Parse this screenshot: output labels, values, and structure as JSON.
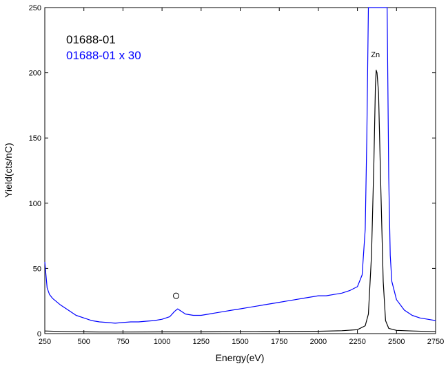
{
  "chart_data": {
    "type": "line",
    "xlabel": "Energy(eV)",
    "ylabel": "Yield(cts/nC)",
    "xlim": [
      250,
      2750
    ],
    "ylim": [
      0,
      250
    ],
    "x_ticks": [
      "250",
      "500",
      "750",
      "1000",
      "1250",
      "1500",
      "1750",
      "2000",
      "2250",
      "2500",
      "2750"
    ],
    "y_ticks": [
      "0",
      "50",
      "100",
      "150",
      "200",
      "250"
    ],
    "grid": false,
    "legend_position": "top-left",
    "series": [
      {
        "name": "01688-01",
        "color": "#000000",
        "points": [
          [
            250,
            2
          ],
          [
            400,
            1.5
          ],
          [
            600,
            1.2
          ],
          [
            800,
            1.2
          ],
          [
            1000,
            1.3
          ],
          [
            1200,
            1.3
          ],
          [
            1400,
            1.4
          ],
          [
            1600,
            1.5
          ],
          [
            1800,
            1.6
          ],
          [
            2000,
            1.8
          ],
          [
            2150,
            2.2
          ],
          [
            2250,
            3
          ],
          [
            2300,
            6
          ],
          [
            2320,
            15
          ],
          [
            2340,
            60
          ],
          [
            2355,
            130
          ],
          [
            2365,
            190
          ],
          [
            2370,
            202
          ],
          [
            2375,
            200
          ],
          [
            2385,
            185
          ],
          [
            2400,
            110
          ],
          [
            2415,
            40
          ],
          [
            2430,
            10
          ],
          [
            2450,
            4
          ],
          [
            2500,
            2.5
          ],
          [
            2600,
            2
          ],
          [
            2750,
            1.5
          ]
        ]
      },
      {
        "name": "01688-01 x 30",
        "color": "#0000ff",
        "points": [
          [
            250,
            55
          ],
          [
            265,
            35
          ],
          [
            280,
            30
          ],
          [
            300,
            27
          ],
          [
            350,
            22
          ],
          [
            400,
            18
          ],
          [
            450,
            14
          ],
          [
            500,
            12
          ],
          [
            550,
            10
          ],
          [
            600,
            9
          ],
          [
            650,
            8.5
          ],
          [
            700,
            8
          ],
          [
            750,
            8.5
          ],
          [
            800,
            9
          ],
          [
            850,
            9
          ],
          [
            900,
            9.5
          ],
          [
            950,
            10
          ],
          [
            1000,
            11
          ],
          [
            1050,
            13
          ],
          [
            1080,
            17
          ],
          [
            1100,
            19
          ],
          [
            1150,
            15
          ],
          [
            1200,
            14
          ],
          [
            1250,
            14
          ],
          [
            1300,
            15
          ],
          [
            1350,
            16
          ],
          [
            1400,
            17
          ],
          [
            1450,
            18
          ],
          [
            1500,
            19
          ],
          [
            1550,
            20
          ],
          [
            1600,
            21
          ],
          [
            1650,
            22
          ],
          [
            1700,
            23
          ],
          [
            1750,
            24
          ],
          [
            1800,
            25
          ],
          [
            1850,
            26
          ],
          [
            1900,
            27
          ],
          [
            1950,
            28
          ],
          [
            2000,
            29
          ],
          [
            2050,
            29
          ],
          [
            2100,
            30
          ],
          [
            2150,
            31
          ],
          [
            2200,
            33
          ],
          [
            2250,
            36
          ],
          [
            2280,
            45
          ],
          [
            2300,
            80
          ],
          [
            2310,
            150
          ],
          [
            2320,
            250
          ],
          [
            2440,
            250
          ],
          [
            2450,
            120
          ],
          [
            2460,
            60
          ],
          [
            2470,
            40
          ],
          [
            2500,
            26
          ],
          [
            2550,
            18
          ],
          [
            2600,
            14
          ],
          [
            2650,
            12
          ],
          [
            2700,
            11
          ],
          [
            2750,
            10
          ]
        ]
      }
    ],
    "legend": [
      "01688-01",
      "01688-01 x 30"
    ],
    "annotations": [
      {
        "text": "Zn",
        "x": 2365,
        "y": 212
      },
      {
        "marker": "circle",
        "x": 1090,
        "y": 29
      }
    ]
  }
}
